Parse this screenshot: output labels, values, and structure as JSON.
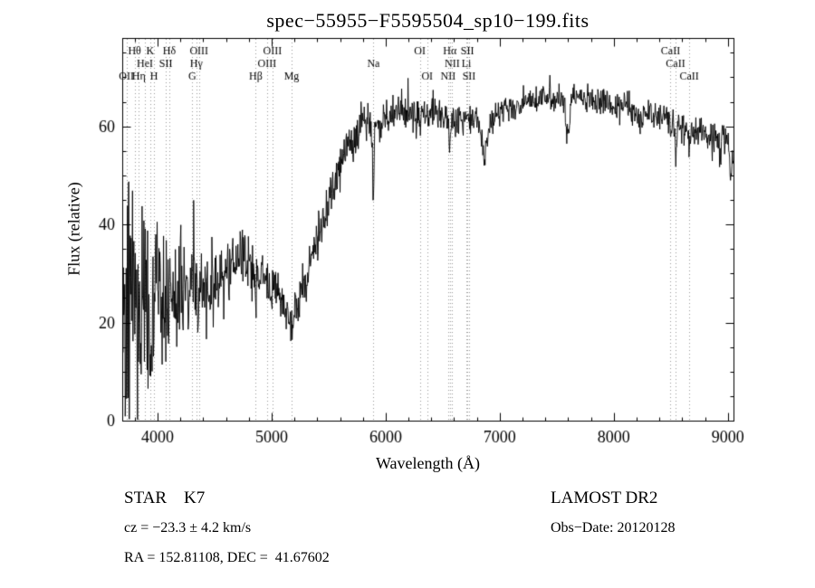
{
  "header": {
    "title": "spec−55955−F5595504_sp10−199.fits"
  },
  "footer": {
    "class_type": "STAR    K7",
    "survey": "LAMOST DR2",
    "velocity": "cz = −23.3 ± 4.2 km/s",
    "obs_date": "Obs−Date: 20120128",
    "coordinates": "RA = 152.81108, DEC =  41.67602"
  },
  "chart_data": {
    "type": "line",
    "title": "spec−55955−F5595504_sp10−199.fits",
    "xlabel": "Wavelength (Å)",
    "ylabel": "Flux (relative)",
    "xlim": [
      3690,
      9050
    ],
    "ylim": [
      0,
      78
    ],
    "xticks": [
      4000,
      5000,
      6000,
      7000,
      8000,
      9000
    ],
    "yticks": [
      0,
      20,
      40,
      60
    ],
    "x_minor_step": 200,
    "y_minor_step": 5,
    "grid": false,
    "legend": "none",
    "line_color": "#000000",
    "marker_line_color": "#999999",
    "continuum": [
      [
        3692,
        29
      ],
      [
        3750,
        27
      ],
      [
        3800,
        26
      ],
      [
        3850,
        25
      ],
      [
        3900,
        24
      ],
      [
        3950,
        25
      ],
      [
        4000,
        25
      ],
      [
        4100,
        24
      ],
      [
        4200,
        25
      ],
      [
        4300,
        26
      ],
      [
        4400,
        27
      ],
      [
        4500,
        28
      ],
      [
        4600,
        30
      ],
      [
        4700,
        32
      ],
      [
        4750,
        33
      ],
      [
        4800,
        32
      ],
      [
        4850,
        31
      ],
      [
        4900,
        30
      ],
      [
        4950,
        29
      ],
      [
        5000,
        28
      ],
      [
        5050,
        26
      ],
      [
        5100,
        24
      ],
      [
        5150,
        22
      ],
      [
        5200,
        23
      ],
      [
        5250,
        25
      ],
      [
        5300,
        29
      ],
      [
        5350,
        33
      ],
      [
        5400,
        37
      ],
      [
        5450,
        41
      ],
      [
        5500,
        45
      ],
      [
        5550,
        49
      ],
      [
        5600,
        52
      ],
      [
        5650,
        55
      ],
      [
        5700,
        57
      ],
      [
        5750,
        58
      ],
      [
        5800,
        60
      ],
      [
        5850,
        61
      ],
      [
        5900,
        60
      ],
      [
        5950,
        61
      ],
      [
        6000,
        62
      ],
      [
        6100,
        63
      ],
      [
        6200,
        63
      ],
      [
        6300,
        62
      ],
      [
        6400,
        63
      ],
      [
        6500,
        62
      ],
      [
        6550,
        61
      ],
      [
        6600,
        61
      ],
      [
        6700,
        62
      ],
      [
        6800,
        61
      ],
      [
        6870,
        58
      ],
      [
        6950,
        62
      ],
      [
        7000,
        63
      ],
      [
        7100,
        64
      ],
      [
        7200,
        65
      ],
      [
        7300,
        65
      ],
      [
        7400,
        66
      ],
      [
        7500,
        66
      ],
      [
        7600,
        65
      ],
      [
        7700,
        66
      ],
      [
        7800,
        65
      ],
      [
        7900,
        65
      ],
      [
        8000,
        64
      ],
      [
        8100,
        64
      ],
      [
        8200,
        63
      ],
      [
        8300,
        63
      ],
      [
        8400,
        62
      ],
      [
        8500,
        61
      ],
      [
        8600,
        60
      ],
      [
        8700,
        59
      ],
      [
        8800,
        58
      ],
      [
        8900,
        57
      ],
      [
        9000,
        58
      ],
      [
        9050,
        55
      ]
    ],
    "noise_amplitude": [
      [
        3692,
        26
      ],
      [
        3750,
        24
      ],
      [
        3800,
        22
      ],
      [
        3850,
        19
      ],
      [
        3900,
        17
      ],
      [
        4000,
        14
      ],
      [
        4100,
        12
      ],
      [
        4200,
        11
      ],
      [
        4300,
        9
      ],
      [
        4400,
        8
      ],
      [
        4500,
        7
      ],
      [
        4600,
        6
      ],
      [
        4800,
        5.5
      ],
      [
        5000,
        5
      ],
      [
        5200,
        4.5
      ],
      [
        5400,
        4
      ],
      [
        5600,
        3.6
      ],
      [
        5800,
        3.4
      ],
      [
        6000,
        3.2
      ],
      [
        6300,
        3
      ],
      [
        6600,
        2.9
      ],
      [
        7000,
        2.7
      ],
      [
        7500,
        2.5
      ],
      [
        8000,
        2.5
      ],
      [
        8500,
        2.8
      ],
      [
        8800,
        3.1
      ],
      [
        9050,
        3.8
      ]
    ],
    "absorption_features": [
      {
        "center": 3934,
        "depth": 8,
        "sigma": 8
      },
      {
        "center": 4861,
        "depth": 4,
        "sigma": 6
      },
      {
        "center": 5175,
        "depth": 3,
        "sigma": 15
      },
      {
        "center": 5893,
        "depth": 16,
        "sigma": 6
      },
      {
        "center": 6563,
        "depth": 6,
        "sigma": 6
      },
      {
        "center": 6870,
        "depth": 4,
        "sigma": 18
      },
      {
        "center": 7190,
        "depth": 2,
        "sigma": 10
      },
      {
        "center": 7594,
        "depth": 6,
        "sigma": 16
      },
      {
        "center": 8227,
        "depth": 3,
        "sigma": 10
      },
      {
        "center": 8498,
        "depth": 4,
        "sigma": 7
      },
      {
        "center": 8542,
        "depth": 6,
        "sigma": 8
      },
      {
        "center": 8662,
        "depth": 5,
        "sigma": 7
      },
      {
        "center": 8935,
        "depth": 6,
        "sigma": 5
      },
      {
        "center": 9025,
        "depth": 9,
        "sigma": 6
      }
    ],
    "line_markers": [
      {
        "label": "Hθ",
        "wavelength": 3798,
        "row": 0
      },
      {
        "label": "K",
        "wavelength": 3934,
        "row": 0
      },
      {
        "label": "Hδ",
        "wavelength": 4102,
        "row": 0
      },
      {
        "label": "OIII",
        "wavelength": 4363,
        "row": 0
      },
      {
        "label": "OIII",
        "wavelength": 5007,
        "row": 0
      },
      {
        "label": "OI",
        "wavelength": 6300,
        "row": 0
      },
      {
        "label": "Hα",
        "wavelength": 6563,
        "row": 0
      },
      {
        "label": "SII",
        "wavelength": 6717,
        "row": 0
      },
      {
        "label": "CaII",
        "wavelength": 8498,
        "row": 0
      },
      {
        "label": "HeI",
        "wavelength": 3889,
        "row": 1
      },
      {
        "label": "SII",
        "wavelength": 4072,
        "row": 1
      },
      {
        "label": "Hγ",
        "wavelength": 4340,
        "row": 1
      },
      {
        "label": "OIII",
        "wavelength": 4959,
        "row": 1
      },
      {
        "label": "Na",
        "wavelength": 5893,
        "row": 1
      },
      {
        "label": "NII",
        "wavelength": 6583,
        "row": 1
      },
      {
        "label": "Li",
        "wavelength": 6708,
        "row": 1
      },
      {
        "label": "CaII",
        "wavelength": 8542,
        "row": 1
      },
      {
        "label": "OII",
        "wavelength": 3727,
        "row": 2
      },
      {
        "label": "Hη",
        "wavelength": 3835,
        "row": 2
      },
      {
        "label": "H",
        "wavelength": 3968,
        "row": 2
      },
      {
        "label": "G",
        "wavelength": 4304,
        "row": 2
      },
      {
        "label": "Hβ",
        "wavelength": 4861,
        "row": 2
      },
      {
        "label": "Mg",
        "wavelength": 5175,
        "row": 2
      },
      {
        "label": "OI",
        "wavelength": 6364,
        "row": 2
      },
      {
        "label": "NII",
        "wavelength": 6548,
        "row": 2
      },
      {
        "label": "SII",
        "wavelength": 6731,
        "row": 2
      },
      {
        "label": "CaII",
        "wavelength": 8662,
        "row": 2
      }
    ]
  }
}
